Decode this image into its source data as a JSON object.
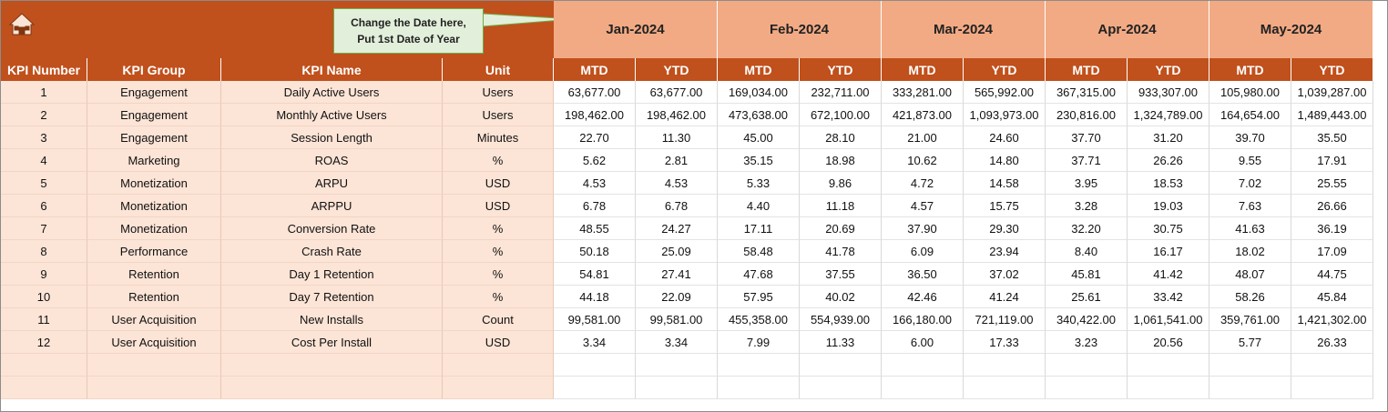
{
  "callout": [
    "Change the Date here,",
    "Put 1st Date of Year"
  ],
  "months": [
    "Jan-2024",
    "Feb-2024",
    "Mar-2024",
    "Apr-2024",
    "May-2024"
  ],
  "column_headers": [
    "KPI Number",
    "KPI Group",
    "KPI Name",
    "Unit"
  ],
  "sub_headers": [
    "MTD",
    "YTD"
  ],
  "table": {
    "rows": [
      [
        "1",
        "Engagement",
        "Daily Active Users",
        "Users",
        "63,677.00",
        "63,677.00",
        "169,034.00",
        "232,711.00",
        "333,281.00",
        "565,992.00",
        "367,315.00",
        "933,307.00",
        "105,980.00",
        "1,039,287.00"
      ],
      [
        "2",
        "Engagement",
        "Monthly Active Users",
        "Users",
        "198,462.00",
        "198,462.00",
        "473,638.00",
        "672,100.00",
        "421,873.00",
        "1,093,973.00",
        "230,816.00",
        "1,324,789.00",
        "164,654.00",
        "1,489,443.00"
      ],
      [
        "3",
        "Engagement",
        "Session Length",
        "Minutes",
        "22.70",
        "11.30",
        "45.00",
        "28.10",
        "21.00",
        "24.60",
        "37.70",
        "31.20",
        "39.70",
        "35.50"
      ],
      [
        "4",
        "Marketing",
        "ROAS",
        "%",
        "5.62",
        "2.81",
        "35.15",
        "18.98",
        "10.62",
        "14.80",
        "37.71",
        "26.26",
        "9.55",
        "17.91"
      ],
      [
        "5",
        "Monetization",
        "ARPU",
        "USD",
        "4.53",
        "4.53",
        "5.33",
        "9.86",
        "4.72",
        "14.58",
        "3.95",
        "18.53",
        "7.02",
        "25.55"
      ],
      [
        "6",
        "Monetization",
        "ARPPU",
        "USD",
        "6.78",
        "6.78",
        "4.40",
        "11.18",
        "4.57",
        "15.75",
        "3.28",
        "19.03",
        "7.63",
        "26.66"
      ],
      [
        "7",
        "Monetization",
        "Conversion Rate",
        "%",
        "48.55",
        "24.27",
        "17.11",
        "20.69",
        "37.90",
        "29.30",
        "32.20",
        "30.75",
        "41.63",
        "36.19"
      ],
      [
        "8",
        "Performance",
        "Crash Rate",
        "%",
        "50.18",
        "25.09",
        "58.48",
        "41.78",
        "6.09",
        "23.94",
        "8.40",
        "16.17",
        "18.02",
        "17.09"
      ],
      [
        "9",
        "Retention",
        "Day 1 Retention",
        "%",
        "54.81",
        "27.41",
        "47.68",
        "37.55",
        "36.50",
        "37.02",
        "45.81",
        "41.42",
        "48.07",
        "44.75"
      ],
      [
        "10",
        "Retention",
        "Day 7 Retention",
        "%",
        "44.18",
        "22.09",
        "57.95",
        "40.02",
        "42.46",
        "41.24",
        "25.61",
        "33.42",
        "58.26",
        "45.84"
      ],
      [
        "11",
        "User Acquisition",
        "New Installs",
        "Count",
        "99,581.00",
        "99,581.00",
        "455,358.00",
        "554,939.00",
        "166,180.00",
        "721,119.00",
        "340,422.00",
        "1,061,541.00",
        "359,761.00",
        "1,421,302.00"
      ],
      [
        "12",
        "User Acquisition",
        "Cost Per Install",
        "USD",
        "3.34",
        "3.34",
        "7.99",
        "11.33",
        "6.00",
        "17.33",
        "3.23",
        "20.56",
        "5.77",
        "26.33"
      ]
    ]
  }
}
